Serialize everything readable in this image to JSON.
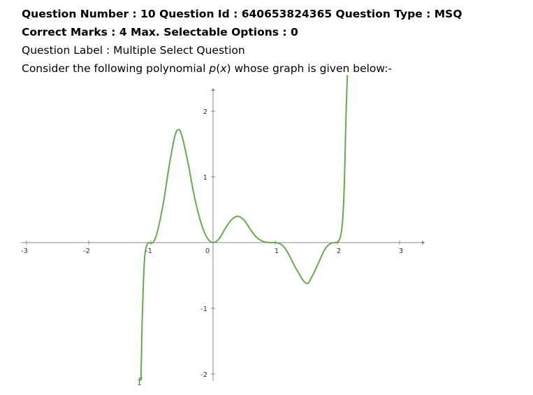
{
  "header": {
    "line1": "Question Number : 10 Question Id : 640653824365 Question Type : MSQ",
    "line2": "Correct Marks : 4 Max. Selectable Options : 0",
    "line3": "Question Label : Multiple Select Question",
    "line4_pre": "Consider the following polynomial ",
    "line4_p": "p",
    "line4_open": "(",
    "line4_x": "x",
    "line4_close": ")",
    "line4_post": " whose graph is given below:-"
  },
  "chart_data": {
    "type": "line",
    "function_label": "f",
    "curve_color": "#6aa84f",
    "axis_color": "#888888",
    "x_ticks": [
      "-3",
      "-2",
      "-1",
      "0",
      "1",
      "2",
      "3"
    ],
    "y_ticks": [
      "2",
      "1",
      "-1",
      "-2"
    ],
    "x_tick_values": [
      -3,
      -2,
      -1,
      0,
      1,
      2,
      3
    ],
    "y_tick_values": [
      2,
      1,
      -1,
      -2
    ],
    "xlim": [
      -3,
      3.3
    ],
    "ylim": [
      -2.1,
      2.5
    ],
    "series": [
      {
        "points": [
          [
            -1.16,
            -2.1
          ],
          [
            -1.14,
            -1.2
          ],
          [
            -1.12,
            -0.6
          ],
          [
            -1.1,
            -0.22
          ],
          [
            -1.07,
            -0.05
          ],
          [
            -1.03,
            0.0
          ],
          [
            -0.97,
            0.0
          ],
          [
            -0.9,
            0.15
          ],
          [
            -0.8,
            0.6
          ],
          [
            -0.7,
            1.2
          ],
          [
            -0.62,
            1.6
          ],
          [
            -0.56,
            1.72
          ],
          [
            -0.5,
            1.62
          ],
          [
            -0.4,
            1.2
          ],
          [
            -0.3,
            0.7
          ],
          [
            -0.2,
            0.32
          ],
          [
            -0.1,
            0.08
          ],
          [
            0.0,
            0.0
          ],
          [
            0.1,
            0.06
          ],
          [
            0.2,
            0.22
          ],
          [
            0.3,
            0.35
          ],
          [
            0.4,
            0.4
          ],
          [
            0.5,
            0.34
          ],
          [
            0.6,
            0.2
          ],
          [
            0.7,
            0.08
          ],
          [
            0.8,
            0.02
          ],
          [
            0.9,
            0.0
          ],
          [
            1.0,
            0.0
          ],
          [
            1.1,
            -0.03
          ],
          [
            1.2,
            -0.15
          ],
          [
            1.35,
            -0.42
          ],
          [
            1.5,
            -0.62
          ],
          [
            1.6,
            -0.5
          ],
          [
            1.7,
            -0.3
          ],
          [
            1.8,
            -0.1
          ],
          [
            1.88,
            -0.02
          ],
          [
            1.95,
            0.0
          ],
          [
            2.02,
            0.02
          ],
          [
            2.07,
            0.2
          ],
          [
            2.1,
            0.6
          ],
          [
            2.12,
            1.2
          ],
          [
            2.14,
            2.0
          ],
          [
            2.16,
            2.55
          ]
        ]
      }
    ]
  }
}
